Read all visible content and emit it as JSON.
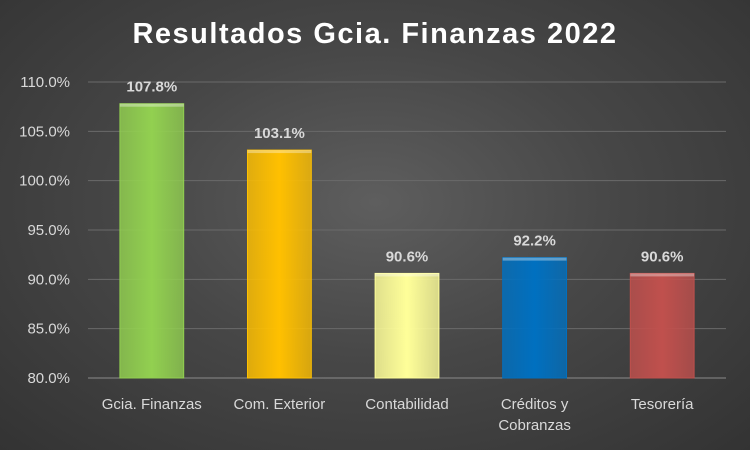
{
  "chart_data": {
    "type": "bar",
    "title": "Resultados Gcia. Finanzas 2022",
    "categories": [
      [
        "Gcia. Finanzas"
      ],
      [
        "Com. Exterior"
      ],
      [
        "Contabilidad"
      ],
      [
        "Créditos y",
        "Cobranzas"
      ],
      [
        "Tesorería"
      ]
    ],
    "values": [
      107.8,
      103.1,
      90.6,
      92.2,
      90.6
    ],
    "data_labels": [
      "107.8%",
      "103.1%",
      "90.6%",
      "92.2%",
      "90.6%"
    ],
    "bar_colors": [
      "#92d050",
      "#ffc000",
      "#ffff99",
      "#0070c0",
      "#c0504d"
    ],
    "ylim": [
      80,
      110
    ],
    "yticks": [
      80,
      85,
      90,
      95,
      100,
      105,
      110
    ],
    "ytick_labels": [
      "80.0%",
      "85.0%",
      "90.0%",
      "95.0%",
      "100.0%",
      "105.0%",
      "110.0%"
    ],
    "grid": true,
    "legend": "none",
    "background": "#444444"
  }
}
